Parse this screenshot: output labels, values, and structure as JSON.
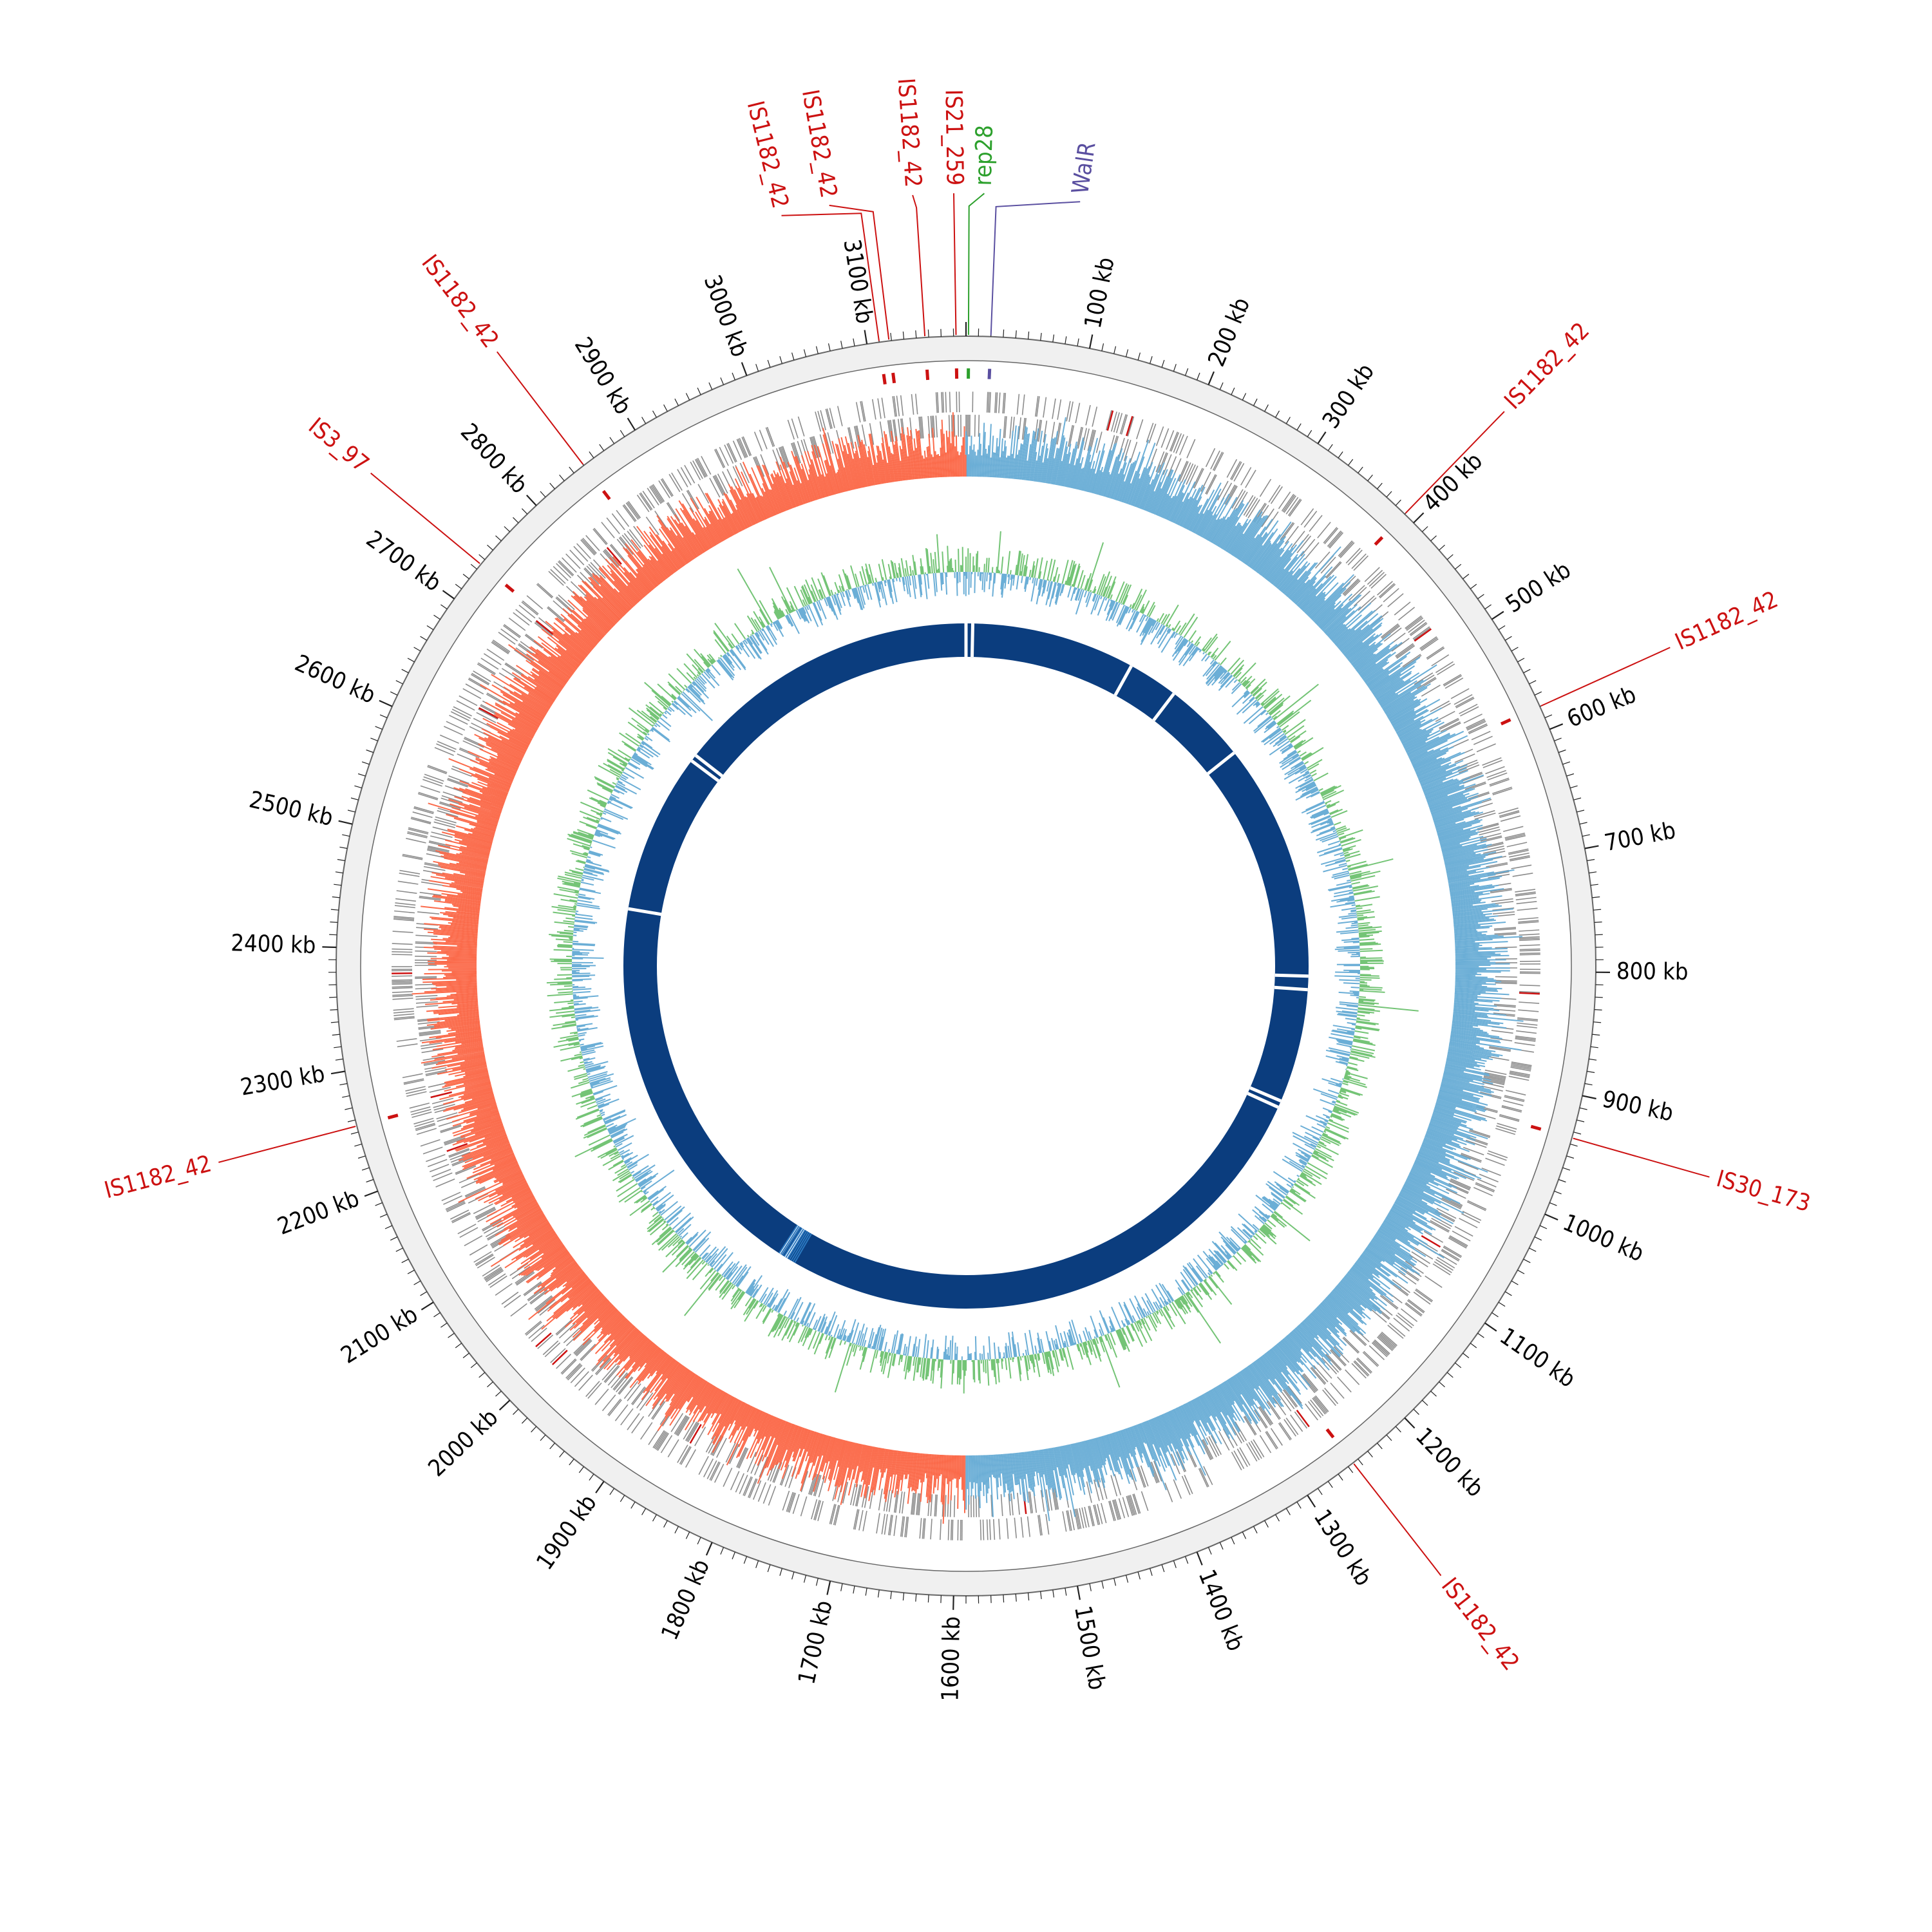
{
  "genome_length_kb": 3180,
  "origin_label_position_kb": 0,
  "scale": {
    "major_tick_kb": 100,
    "minor_tick_kb": 10,
    "unit": "kb",
    "labels": [
      "100 kb",
      "200 kb",
      "300 kb",
      "400 kb",
      "500 kb",
      "600 kb",
      "700 kb",
      "800 kb",
      "900 kb",
      "1000 kb",
      "1100 kb",
      "1200 kb",
      "1300 kb",
      "1400 kb",
      "1500 kb",
      "1600 kb",
      "1700 kb",
      "1800 kb",
      "1900 kb",
      "2000 kb",
      "2100 kb",
      "2200 kb",
      "2300 kb",
      "2400 kb",
      "2500 kb",
      "2600 kb",
      "2700 kb",
      "2800 kb",
      "2900 kb",
      "3000 kb",
      "3100 kb"
    ]
  },
  "colors": {
    "outer_ring": "#f0f0f0",
    "cds": "#8c8c8c",
    "is_element": "#cc1111",
    "rep": "#2ca02c",
    "walr": "#5a4fa0",
    "gc_skew_positive": "#6baed6",
    "gc_skew_negative": "#fb6a4a",
    "gc_content_positive": "#74c476",
    "gc_content_negative": "#6baed6",
    "blast_ring": "#0b3d7e",
    "blast_gap": "#2a78c0"
  },
  "features": [
    {
      "name": "WalR",
      "position_kb": 20,
      "type": "walr"
    },
    {
      "name": "rep28",
      "position_kb": 2,
      "type": "rep"
    },
    {
      "name": "IS21_259",
      "position_kb": 3172,
      "type": "is_element"
    },
    {
      "name": "IS1182_42",
      "position_kb": 3147,
      "type": "is_element"
    },
    {
      "name": "IS1182_42",
      "position_kb": 3118,
      "type": "is_element"
    },
    {
      "name": "IS1182_42",
      "position_kb": 3110,
      "type": "is_element"
    },
    {
      "name": "IS1182_42",
      "position_kb": 2850,
      "type": "is_element"
    },
    {
      "name": "IS3_97",
      "position_kb": 2735,
      "type": "is_element"
    },
    {
      "name": "IS1182_42",
      "position_kb": 2255,
      "type": "is_element"
    },
    {
      "name": "IS1182_42",
      "position_kb": 390,
      "type": "is_element"
    },
    {
      "name": "IS1182_42",
      "position_kb": 580,
      "type": "is_element"
    },
    {
      "name": "IS30_173",
      "position_kb": 935,
      "type": "is_element"
    },
    {
      "name": "IS1182_42",
      "position_kb": 1255,
      "type": "is_element"
    }
  ],
  "blast_gaps_kb": [
    0,
    10,
    255,
    330,
    455,
    810,
    830,
    1000,
    1010,
    1870,
    1880,
    2470,
    2710,
    2720
  ]
}
